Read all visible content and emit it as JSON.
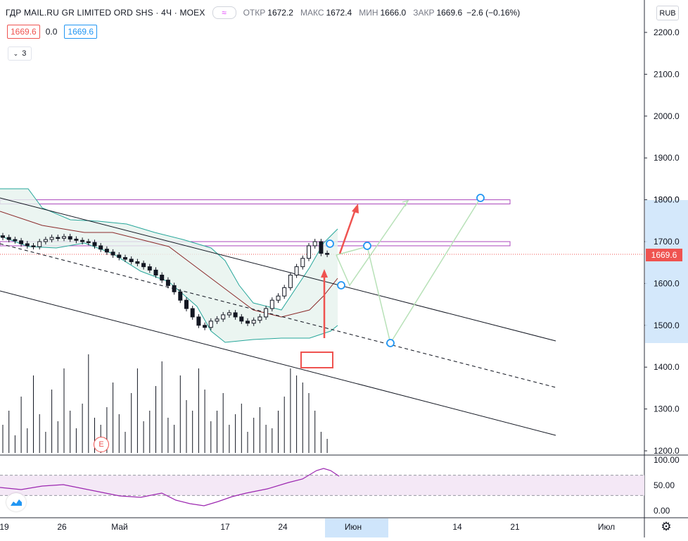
{
  "header": {
    "symbol": "ГДР MAIL.RU GR LIMITED ORD SHS · 4Ч · MOEX",
    "compare_icon": "tilde-icon",
    "open_label": "ОТКР",
    "open_value": "1672.2",
    "high_label": "МАКС",
    "high_value": "1672.4",
    "low_label": "МИН",
    "low_value": "1666.0",
    "close_label": "ЗАКР",
    "close_value": "1669.6",
    "change": "−2.6 (−0.16%)",
    "currency": "RUB"
  },
  "indicator_row": {
    "value_red": "1669.6",
    "value_plain": "0.0",
    "value_blue": "1669.6"
  },
  "collapse": {
    "count": "3"
  },
  "price_axis": {
    "ticks": [
      "2200.0",
      "2100.0",
      "2000.0",
      "1900.0",
      "1800.0",
      "1700.0",
      "1600.0",
      "1500.0",
      "1400.0",
      "1300.0",
      "1200.0"
    ],
    "current_price": "1669.6"
  },
  "rsi_axis": {
    "ticks": [
      "100.00",
      "50.00",
      "0.00"
    ]
  },
  "time_axis": {
    "labels": [
      "19",
      "26",
      "Май",
      "17",
      "24",
      "Июн",
      "14",
      "21",
      "Июл"
    ]
  },
  "badges": {
    "earnings": "E"
  },
  "colors": {
    "up": "#26a69a",
    "down": "#ef5350",
    "bollinger": "#26a69a",
    "ma": "#8b2a2a",
    "rsi": "#9c27b0",
    "forecast": "#b7e1b7",
    "zone": "#ab47bc",
    "accent": "#2196f3"
  },
  "chart_data": {
    "type": "candlestick",
    "y_unit": "RUB",
    "ylim": [
      1180,
      2250
    ],
    "rsi_ylim": [
      0,
      100
    ],
    "x_labels": [
      "19",
      "26",
      "Май",
      "17",
      "24",
      "Июн",
      "14",
      "21",
      "Июл"
    ],
    "current_price": 1669.6,
    "horizontal_zones": [
      [
        1790,
        1800
      ],
      [
        1690,
        1700
      ]
    ],
    "rsi_bands": [
      70,
      30
    ]
  }
}
